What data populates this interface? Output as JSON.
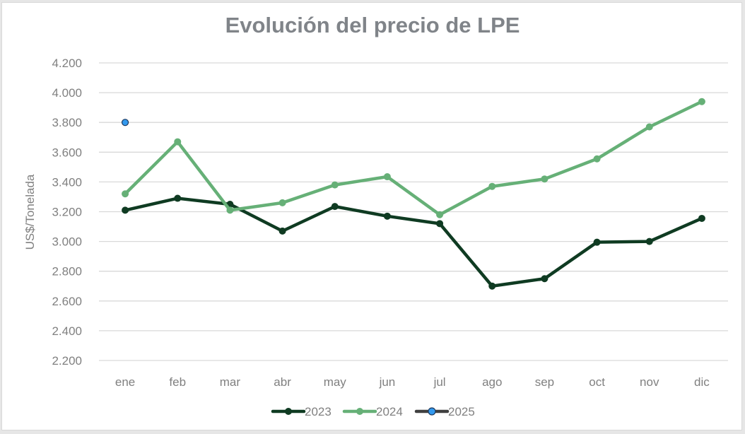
{
  "chart_data": {
    "type": "line",
    "title": "Evolución del precio de LPE",
    "xlabel": "",
    "ylabel": "US$/Tonelada",
    "categories": [
      "ene",
      "feb",
      "mar",
      "abr",
      "may",
      "jun",
      "jul",
      "ago",
      "sep",
      "oct",
      "nov",
      "dic"
    ],
    "yticks": [
      "2.200",
      "2.400",
      "2.600",
      "2.800",
      "3.000",
      "3.200",
      "3.400",
      "3.600",
      "3.800",
      "4.000",
      "4.200"
    ],
    "ytick_values": [
      2200,
      2400,
      2600,
      2800,
      3000,
      3200,
      3400,
      3600,
      3800,
      4000,
      4200
    ],
    "ylim": [
      2200,
      4200
    ],
    "grid": true,
    "legend_position": "bottom",
    "series": [
      {
        "name": "2023",
        "color": "#0f3b22",
        "marker_color": "#0f3b22",
        "legend_line_color": "#0f3b22",
        "values": [
          3210,
          3290,
          3250,
          3070,
          3235,
          3170,
          3120,
          2700,
          2750,
          2995,
          3000,
          3155
        ]
      },
      {
        "name": "2024",
        "color": "#66b077",
        "marker_color": "#66b077",
        "legend_line_color": "#66b077",
        "values": [
          3320,
          3670,
          3210,
          3260,
          3380,
          3435,
          3180,
          3370,
          3420,
          3555,
          3770,
          3940
        ]
      },
      {
        "name": "2025",
        "color": "#404040",
        "marker_color": "#3399ee",
        "legend_line_color": "#404040",
        "values": [
          3800,
          null,
          null,
          null,
          null,
          null,
          null,
          null,
          null,
          null,
          null,
          null
        ]
      }
    ]
  }
}
